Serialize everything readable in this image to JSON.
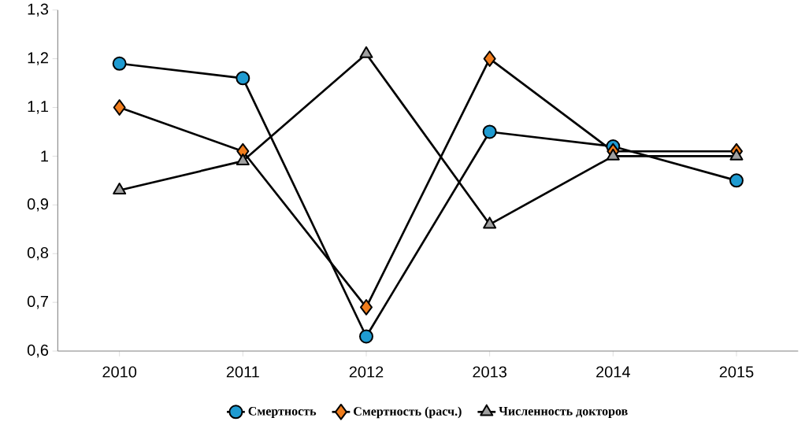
{
  "chart_data": {
    "type": "line",
    "categories": [
      "2010",
      "2011",
      "2012",
      "2013",
      "2014",
      "2015"
    ],
    "ylim": [
      0.6,
      1.3
    ],
    "yticks": [
      {
        "value": 0.6,
        "label": "0,6"
      },
      {
        "value": 0.7,
        "label": "0,7"
      },
      {
        "value": 0.8,
        "label": "0,8"
      },
      {
        "value": 0.9,
        "label": "0,9"
      },
      1,
      {
        "value": 1.1,
        "label": "1,1"
      },
      {
        "value": 1.2,
        "label": "1,2"
      },
      {
        "value": 1.3,
        "label": "1,3"
      }
    ],
    "grid": false,
    "legend": "bottom",
    "line_style": "solid",
    "series": [
      {
        "name": "Смертность",
        "color": "#1f9bd1",
        "marker": "circle",
        "values": [
          1.19,
          1.16,
          0.63,
          1.05,
          1.02,
          0.95
        ]
      },
      {
        "name": "Смертность (расч.)",
        "color": "#f07d1d",
        "marker": "diamond",
        "values": [
          1.1,
          1.01,
          0.69,
          1.2,
          1.01,
          1.01
        ]
      },
      {
        "name": "Численность докторов",
        "color": "#a0a0a0",
        "marker": "triangle",
        "values": [
          0.93,
          0.99,
          1.21,
          0.86,
          1.0,
          1.0
        ]
      }
    ]
  }
}
